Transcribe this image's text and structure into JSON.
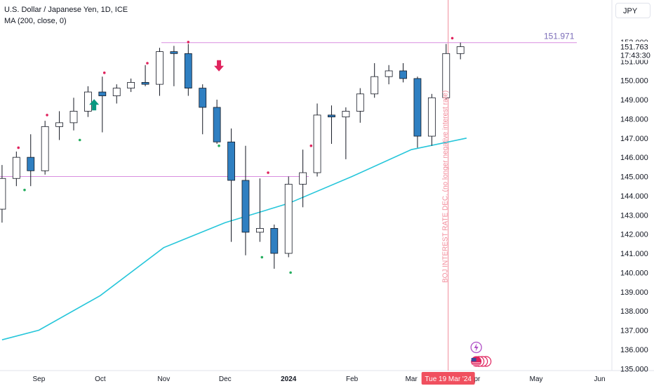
{
  "header": {
    "title": "U.S. Dollar / Japanese Yen, 1D, ICE",
    "indicator": "MA (200, close, 0)",
    "currency": "JPY"
  },
  "colors": {
    "up_body": "#ffffff",
    "down_body": "#2f7fc1",
    "wick": "#131722",
    "ma": "#26c6da",
    "hline": "#d98ee0",
    "vline": "#f28b9a",
    "marker_top": "#e0245e",
    "marker_bottom": "#27ae60",
    "arrow_up": "#089981",
    "arrow_down": "#e0245e",
    "highlight": "#7b6cb8"
  },
  "price_axis": {
    "ticks": [
      "152.000",
      "151.000",
      "150.000",
      "149.000",
      "148.000",
      "147.000",
      "146.000",
      "145.000",
      "144.000",
      "143.000",
      "142.000",
      "141.000",
      "140.000",
      "139.000",
      "138.000",
      "137.000",
      "136.000",
      "135.000"
    ],
    "last_price": "151.763",
    "countdown": "17:43:30",
    "line_label": "151.971"
  },
  "time_axis": {
    "labels": [
      {
        "text": "Sep",
        "x": "2023-09-01"
      },
      {
        "text": "Oct",
        "x": "2023-10-01"
      },
      {
        "text": "Nov",
        "x": "2023-11-01"
      },
      {
        "text": "Dec",
        "x": "2023-12-01"
      },
      {
        "text": "2024",
        "x": "2024-01-01",
        "bold": true
      },
      {
        "text": "Feb",
        "x": "2024-02-01"
      },
      {
        "text": "Mar",
        "x": "2024-03-01"
      },
      {
        "text": "Apr",
        "x": "2024-04-01"
      },
      {
        "text": "May",
        "x": "2024-05-01"
      },
      {
        "text": "Jun",
        "x": "2024-06-01"
      }
    ],
    "crosshair_date": "Tue 19 Mar '24"
  },
  "annotation": {
    "vertical_text": "BOJ INTEREST RATE DEC. (no longer negative interest rate)"
  },
  "chart_data": {
    "type": "candlestick",
    "x_axis": "date",
    "y_axis": "price (JPY)",
    "ylim": [
      134.9,
      152.8
    ],
    "xlim": [
      "2023-08-13",
      "2024-06-07"
    ],
    "horizontal_lines": [
      151.971,
      145.0
    ],
    "vertical_line_date": "2024-03-19",
    "series": [
      {
        "name": "USDJPY",
        "candles": [
          [
            "2023-08-14",
            143.3,
            145.6,
            142.6,
            144.9
          ],
          [
            "2023-08-21",
            144.9,
            146.3,
            144.5,
            146.0
          ],
          [
            "2023-08-28",
            146.0,
            147.2,
            144.5,
            145.3
          ],
          [
            "2023-09-04",
            145.3,
            147.9,
            145.1,
            147.6
          ],
          [
            "2023-09-11",
            147.6,
            148.4,
            146.9,
            147.8
          ],
          [
            "2023-09-18",
            147.8,
            149.1,
            147.4,
            148.4
          ],
          [
            "2023-09-25",
            148.4,
            149.7,
            148.1,
            149.4
          ],
          [
            "2023-10-02",
            149.4,
            150.2,
            147.3,
            149.2
          ],
          [
            "2023-10-09",
            149.2,
            149.8,
            148.8,
            149.6
          ],
          [
            "2023-10-16",
            149.6,
            150.1,
            149.4,
            149.9
          ],
          [
            "2023-10-23",
            149.9,
            150.8,
            149.7,
            149.8
          ],
          [
            "2023-10-30",
            149.8,
            151.7,
            149.2,
            151.5
          ],
          [
            "2023-11-06",
            151.5,
            151.8,
            149.7,
            151.4
          ],
          [
            "2023-11-13",
            151.4,
            151.9,
            149.2,
            149.6
          ],
          [
            "2023-11-20",
            149.6,
            149.8,
            147.2,
            148.6
          ],
          [
            "2023-11-27",
            148.6,
            149.0,
            146.7,
            146.8
          ],
          [
            "2023-12-04",
            146.8,
            147.5,
            141.6,
            144.8
          ],
          [
            "2023-12-11",
            144.8,
            146.6,
            140.9,
            142.1
          ],
          [
            "2023-12-18",
            142.1,
            144.9,
            141.6,
            142.3
          ],
          [
            "2023-12-25",
            142.3,
            142.5,
            140.2,
            141.0
          ],
          [
            "2024-01-01",
            141.0,
            145.0,
            140.8,
            144.6
          ],
          [
            "2024-01-08",
            144.6,
            146.4,
            143.4,
            145.2
          ],
          [
            "2024-01-15",
            145.2,
            148.8,
            145.0,
            148.2
          ],
          [
            "2024-01-22",
            148.2,
            148.7,
            146.7,
            148.1
          ],
          [
            "2024-01-29",
            148.1,
            148.6,
            145.9,
            148.4
          ],
          [
            "2024-02-05",
            148.4,
            149.6,
            147.8,
            149.3
          ],
          [
            "2024-02-12",
            149.3,
            150.9,
            149.1,
            150.2
          ],
          [
            "2024-02-19",
            150.2,
            150.8,
            149.8,
            150.5
          ],
          [
            "2024-02-26",
            150.5,
            150.9,
            149.9,
            150.1
          ],
          [
            "2024-03-04",
            150.1,
            150.2,
            146.5,
            147.1
          ],
          [
            "2024-03-11",
            147.1,
            149.3,
            146.6,
            149.1
          ],
          [
            "2024-03-18",
            149.1,
            151.9,
            149.0,
            151.4
          ],
          [
            "2024-03-25",
            151.4,
            151.97,
            151.1,
            151.76
          ]
        ]
      },
      {
        "name": "MA (200, close, 0)",
        "points": [
          [
            "2023-08-14",
            136.5
          ],
          [
            "2023-09-01",
            137.0
          ],
          [
            "2023-10-01",
            138.8
          ],
          [
            "2023-11-01",
            141.3
          ],
          [
            "2023-12-01",
            142.6
          ],
          [
            "2024-01-01",
            143.6
          ],
          [
            "2024-02-01",
            145.0
          ],
          [
            "2024-03-01",
            146.4
          ],
          [
            "2024-03-28",
            147.0
          ]
        ]
      }
    ],
    "markers_top": [
      [
        "2023-08-22",
        146.5
      ],
      [
        "2023-09-05",
        148.2
      ],
      [
        "2023-10-03",
        150.4
      ],
      [
        "2023-10-24",
        150.9
      ],
      [
        "2023-11-13",
        152.0
      ],
      [
        "2023-12-22",
        145.2
      ],
      [
        "2024-01-12",
        146.6
      ],
      [
        "2024-03-21",
        152.2
      ]
    ],
    "markers_bottom": [
      [
        "2023-08-25",
        144.3
      ],
      [
        "2023-09-21",
        146.9
      ],
      [
        "2023-11-28",
        146.6
      ],
      [
        "2023-12-19",
        140.8
      ],
      [
        "2024-01-02",
        140.0
      ]
    ],
    "arrows": [
      {
        "direction": "up",
        "date": "2023-09-28",
        "price": 148.7
      },
      {
        "direction": "down",
        "date": "2023-11-28",
        "price": 150.8
      }
    ]
  }
}
